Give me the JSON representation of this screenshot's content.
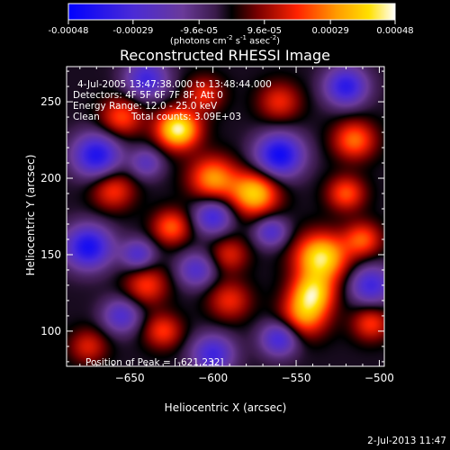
{
  "chart_data": {
    "type": "heatmap",
    "title": "Reconstructed RHESSI Image",
    "xlabel": "Heliocentric X (arcsec)",
    "ylabel": "Heliocentric Y (arcsec)",
    "xlim": [
      -688,
      -497
    ],
    "ylim": [
      77,
      273
    ],
    "xticks": [
      -650,
      -600,
      -550,
      -500
    ],
    "yticks": [
      100,
      150,
      200,
      250
    ],
    "colorbar": {
      "min": -0.00048,
      "max": 0.00048,
      "ticks": [
        -0.00048,
        -0.00029,
        -9.6e-05,
        9.6e-05,
        0.00029,
        0.00048
      ],
      "tick_labels": [
        "-0.00048",
        "-0.00029",
        "-9.6e-05",
        "9.6e-05",
        "0.00029",
        "0.00048"
      ],
      "unit_main": "(photons cm",
      "unit_exp1": "-2",
      "unit_mid": " s",
      "unit_exp2": "-1",
      "unit_tail": " asec",
      "unit_exp3": "-2",
      "unit_close": ")"
    },
    "annotations": {
      "time_range": "4-Jul-2005 13:47:38.000 to 13:48:44.000",
      "detectors": "Detectors: 4F 5F 6F 7F 8F, Att 0",
      "energy_range": "Energy Range: 12.0 - 25.0 keV",
      "algorithm": "Clean",
      "total_counts": "Total counts: 3.09E+03",
      "peak": "Position of Peak = [-621,232]"
    },
    "blobs": [
      {
        "x": -621,
        "y": 232,
        "amp": 0.00048,
        "s": 9
      },
      {
        "x": -575,
        "y": 190,
        "amp": 0.0004,
        "s": 10
      },
      {
        "x": -535,
        "y": 148,
        "amp": 0.00045,
        "s": 11
      },
      {
        "x": -540,
        "y": 125,
        "amp": 0.00035,
        "s": 9
      },
      {
        "x": -545,
        "y": 110,
        "amp": 0.0003,
        "s": 10
      },
      {
        "x": -600,
        "y": 200,
        "amp": 0.00032,
        "s": 10
      },
      {
        "x": -660,
        "y": 192,
        "amp": 0.00022,
        "s": 9
      },
      {
        "x": -625,
        "y": 168,
        "amp": 0.00026,
        "s": 8
      },
      {
        "x": -655,
        "y": 240,
        "amp": 0.00024,
        "s": 9
      },
      {
        "x": -605,
        "y": 255,
        "amp": 0.0002,
        "s": 8
      },
      {
        "x": -640,
        "y": 130,
        "amp": 0.00022,
        "s": 9
      },
      {
        "x": -590,
        "y": 120,
        "amp": 0.0002,
        "s": 9
      },
      {
        "x": -630,
        "y": 100,
        "amp": 0.00022,
        "s": 8
      },
      {
        "x": -590,
        "y": 150,
        "amp": 0.00018,
        "s": 8
      },
      {
        "x": -515,
        "y": 225,
        "amp": 0.00028,
        "s": 9
      },
      {
        "x": -520,
        "y": 190,
        "amp": 0.00025,
        "s": 8
      },
      {
        "x": -560,
        "y": 250,
        "amp": 0.0002,
        "s": 9
      },
      {
        "x": -510,
        "y": 160,
        "amp": 0.00025,
        "s": 8
      },
      {
        "x": -505,
        "y": 105,
        "amp": 0.00022,
        "s": 8
      },
      {
        "x": -675,
        "y": 90,
        "amp": 0.00018,
        "s": 8
      },
      {
        "x": -675,
        "y": 155,
        "amp": -0.0004,
        "s": 10
      },
      {
        "x": -670,
        "y": 215,
        "amp": -0.00038,
        "s": 10
      },
      {
        "x": -560,
        "y": 215,
        "amp": -0.00042,
        "s": 10
      },
      {
        "x": -600,
        "y": 175,
        "amp": -0.0003,
        "s": 8
      },
      {
        "x": -640,
        "y": 265,
        "amp": -0.0003,
        "s": 9
      },
      {
        "x": -520,
        "y": 260,
        "amp": -0.00035,
        "s": 9
      },
      {
        "x": -600,
        "y": 85,
        "amp": -0.0003,
        "s": 9
      },
      {
        "x": -560,
        "y": 95,
        "amp": -0.0003,
        "s": 8
      },
      {
        "x": -505,
        "y": 130,
        "amp": -0.0003,
        "s": 9
      },
      {
        "x": -610,
        "y": 140,
        "amp": -0.00024,
        "s": 8
      },
      {
        "x": -645,
        "y": 150,
        "amp": -0.00025,
        "s": 7
      },
      {
        "x": -565,
        "y": 165,
        "amp": -0.00025,
        "s": 7
      },
      {
        "x": -640,
        "y": 210,
        "amp": -0.0002,
        "s": 7
      },
      {
        "x": -655,
        "y": 110,
        "amp": -0.00025,
        "s": 8
      }
    ]
  },
  "footer": {
    "timestamp": "2-Jul-2013 11:47"
  }
}
